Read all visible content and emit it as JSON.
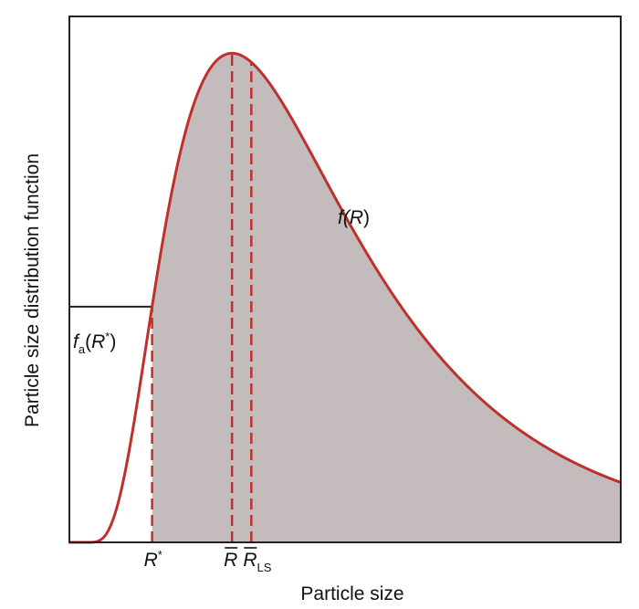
{
  "chart_data": {
    "type": "area",
    "ylabel": "Particle size distribution function",
    "xlabel": "Particle size",
    "curve_label": {
      "prefix": "f(",
      "var": "R",
      "suffix": ")"
    },
    "threshold_label": {
      "f": "f",
      "sub": "a",
      "open": "(",
      "var": "R",
      "star": "*",
      "close": ")"
    },
    "markers": [
      {
        "id": "r-star",
        "base": "R",
        "sup": "*",
        "sub": "",
        "bar": false,
        "x": 0.15
      },
      {
        "id": "r-mean",
        "base": "R",
        "sup": "",
        "sub": "",
        "bar": true,
        "x": 0.295
      },
      {
        "id": "r-ls",
        "base": "R",
        "sup": "",
        "sub": "LS",
        "bar": true,
        "x": 0.33
      }
    ],
    "curve": {
      "peak_x": 0.295,
      "peak_y": 0.93,
      "right_end_y": 0.13,
      "start_x": 0.02,
      "threshold_y": 0.4
    },
    "xlim": [
      0,
      1
    ],
    "ylim": [
      0,
      1
    ],
    "grid": false,
    "colors": {
      "curve": "#c0302b",
      "fill": "#c4bcbc",
      "dash": "#c0302b",
      "axis": "#222222"
    }
  }
}
